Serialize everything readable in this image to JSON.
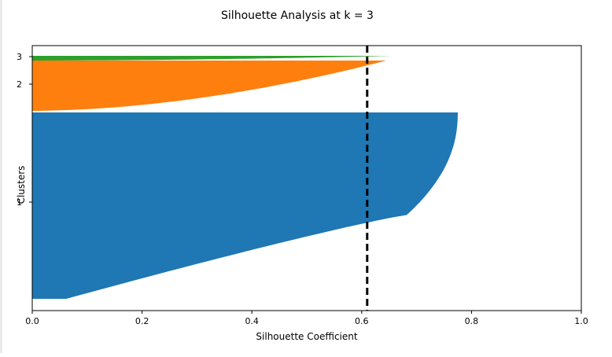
{
  "chart_data": {
    "type": "area",
    "title": "Silhouette Analysis at k = 3",
    "xlabel": "Silhouette Coefficient",
    "ylabel": "Clusters",
    "xlim": [
      0.0,
      1.0
    ],
    "x_ticks": [
      "0.0",
      "0.2",
      "0.4",
      "0.6",
      "0.8",
      "1.0"
    ],
    "y_ticks": [
      "1",
      "2",
      "3"
    ],
    "grid": false,
    "legend": "none",
    "average_silhouette": 0.61,
    "average_line_style": "dashed",
    "average_line_color": "#000000",
    "clusters": [
      {
        "label": "1",
        "color": "#1f77b4",
        "max_coefficient": 0.775,
        "min_coefficient": 0.0,
        "band_top": 0.0,
        "band_bottom": 1.0
      },
      {
        "label": "2",
        "color": "#ff7f0e",
        "max_coefficient": 0.645,
        "min_coefficient": 0.0,
        "band_top": 0.0,
        "band_bottom": 1.0
      },
      {
        "label": "3",
        "color": "#2ca02c",
        "max_coefficient": 0.655,
        "min_coefficient": 0.0,
        "band_top": 0.0,
        "band_bottom": 1.0
      }
    ]
  }
}
